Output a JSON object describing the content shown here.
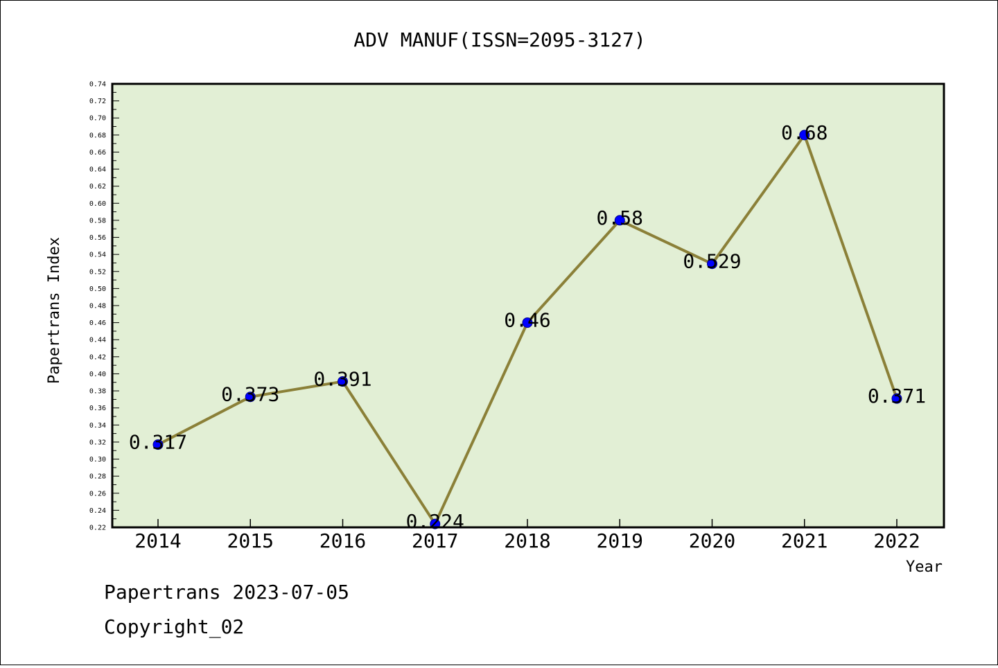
{
  "chart_data": {
    "type": "line",
    "title": "ADV MANUF(ISSN=2095-3127)",
    "xlabel": "Year",
    "ylabel": "Papertrans Index",
    "categories": [
      "2014",
      "2015",
      "2016",
      "2017",
      "2018",
      "2019",
      "2020",
      "2021",
      "2022"
    ],
    "values": [
      0.317,
      0.373,
      0.391,
      0.224,
      0.46,
      0.58,
      0.529,
      0.68,
      0.371
    ],
    "data_labels": [
      "0.317",
      "0.373",
      "0.391",
      "0.224",
      "0.46",
      "0.58",
      "0.529",
      "0.68",
      "0.371"
    ],
    "ylim": [
      0.22,
      0.74
    ],
    "yticks": [
      "0.22",
      "0.24",
      "0.26",
      "0.28",
      "0.30",
      "0.32",
      "0.34",
      "0.36",
      "0.38",
      "0.40",
      "0.42",
      "0.44",
      "0.46",
      "0.48",
      "0.50",
      "0.52",
      "0.54",
      "0.56",
      "0.58",
      "0.60",
      "0.62",
      "0.64",
      "0.66",
      "0.68",
      "0.70",
      "0.72",
      "0.74"
    ],
    "grid": false,
    "legend": "none",
    "colors": {
      "plot_background": "#e2efd5",
      "line": "#8b8038",
      "marker": "#0000ff"
    }
  },
  "footer": {
    "line1": "Papertrans 2023-07-05",
    "line2": "Copyright_02"
  }
}
